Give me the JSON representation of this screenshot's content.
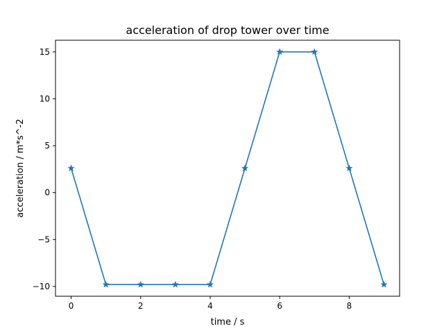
{
  "chart_data": {
    "type": "line",
    "title": "acceleration of drop tower over time",
    "xlabel": "time / s",
    "ylabel": "acceleration / m*s^-2",
    "x": [
      0,
      1,
      2,
      3,
      4,
      5,
      6,
      7,
      8,
      9
    ],
    "series": [
      {
        "values": [
          2.6,
          -9.8,
          -9.8,
          -9.8,
          -9.8,
          2.6,
          15,
          15,
          2.6,
          -9.8
        ],
        "color": "#1f77b4",
        "marker": "star"
      }
    ],
    "xlim": [
      -0.45,
      9.45
    ],
    "ylim": [
      -11.04,
      16.24
    ],
    "xticks": [
      0,
      2,
      4,
      6,
      8
    ],
    "xtick_labels": [
      "0",
      "2",
      "4",
      "6",
      "8"
    ],
    "yticks": [
      -10,
      -5,
      0,
      5,
      10,
      15
    ],
    "ytick_labels": [
      "−10",
      "−5",
      "0",
      "5",
      "10",
      "15"
    ],
    "grid": false,
    "legend": "none"
  }
}
